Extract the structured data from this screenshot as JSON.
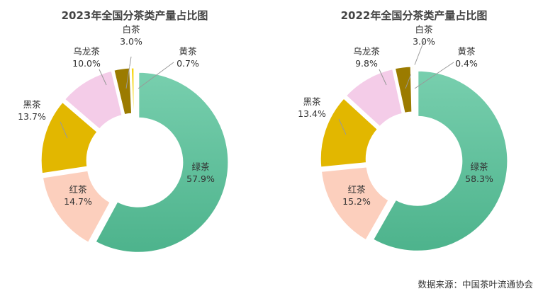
{
  "chart_data": [
    {
      "type": "pie",
      "donut": true,
      "title": "2023年全国分茶类产量占比图",
      "categories": [
        "绿茶",
        "红茶",
        "黑茶",
        "乌龙茶",
        "白茶",
        "黄茶"
      ],
      "values": [
        57.9,
        14.7,
        13.7,
        10.0,
        3.0,
        0.7
      ],
      "labels": [
        "57.9%",
        "14.7%",
        "13.7%",
        "10.0%",
        "3.0%",
        "0.7%"
      ]
    },
    {
      "type": "pie",
      "donut": true,
      "title": "2022年全国分茶类产量占比图",
      "categories": [
        "绿茶",
        "红茶",
        "黑茶",
        "乌龙茶",
        "白茶",
        "黄茶"
      ],
      "values": [
        58.3,
        15.2,
        13.4,
        9.8,
        3.0,
        0.4
      ],
      "labels": [
        "58.3%",
        "15.2%",
        "13.4%",
        "9.8%",
        "3.0%",
        "0.4%"
      ]
    }
  ],
  "colors": [
    "#5fc09d",
    "#fccfbd",
    "#e2b700",
    "#f4cce8",
    "#9b7b00",
    "#f7d613"
  ],
  "source": "数据来源：中国茶叶流通协会"
}
